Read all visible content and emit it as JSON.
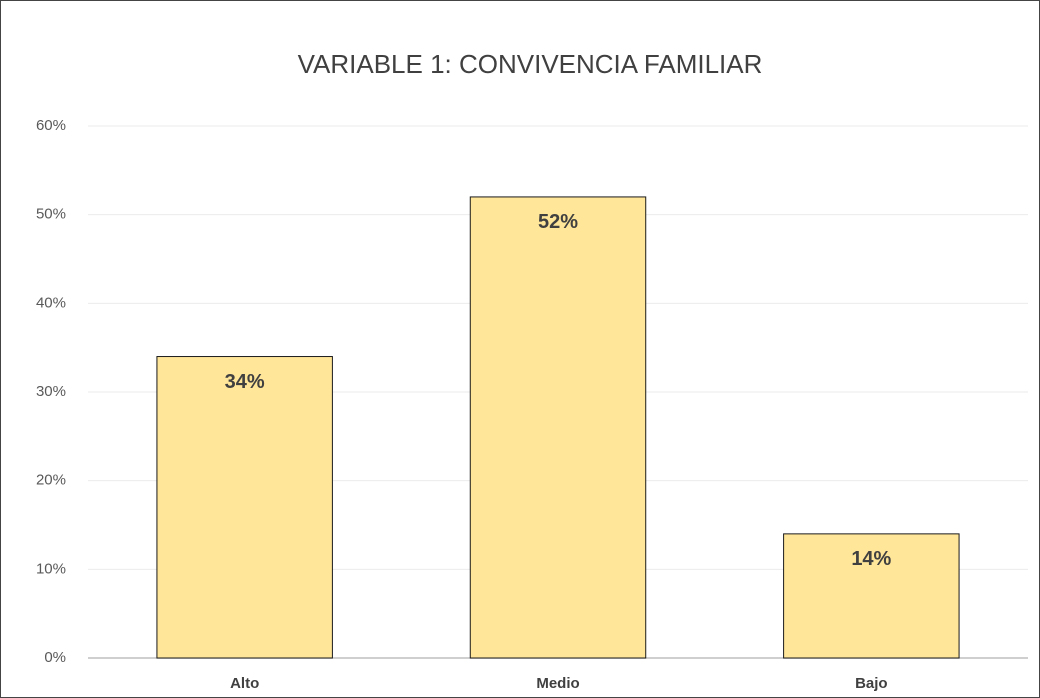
{
  "chart_data": {
    "type": "bar",
    "title": "VARIABLE 1: CONVIVENCIA FAMILIAR",
    "categories": [
      "Alto",
      "Medio",
      "Bajo"
    ],
    "values": [
      34,
      52,
      14
    ],
    "value_labels": [
      "34%",
      "52%",
      "14%"
    ],
    "color": "#ffe699",
    "ylim": [
      0,
      60
    ],
    "yticks": [
      {
        "value": 0,
        "label": "0%"
      },
      {
        "value": 10,
        "label": "10%"
      },
      {
        "value": 20,
        "label": "20%"
      },
      {
        "value": 30,
        "label": "30%"
      },
      {
        "value": 40,
        "label": "40%"
      },
      {
        "value": 50,
        "label": "50%"
      },
      {
        "value": 60,
        "label": "60%"
      }
    ],
    "grid": true
  }
}
